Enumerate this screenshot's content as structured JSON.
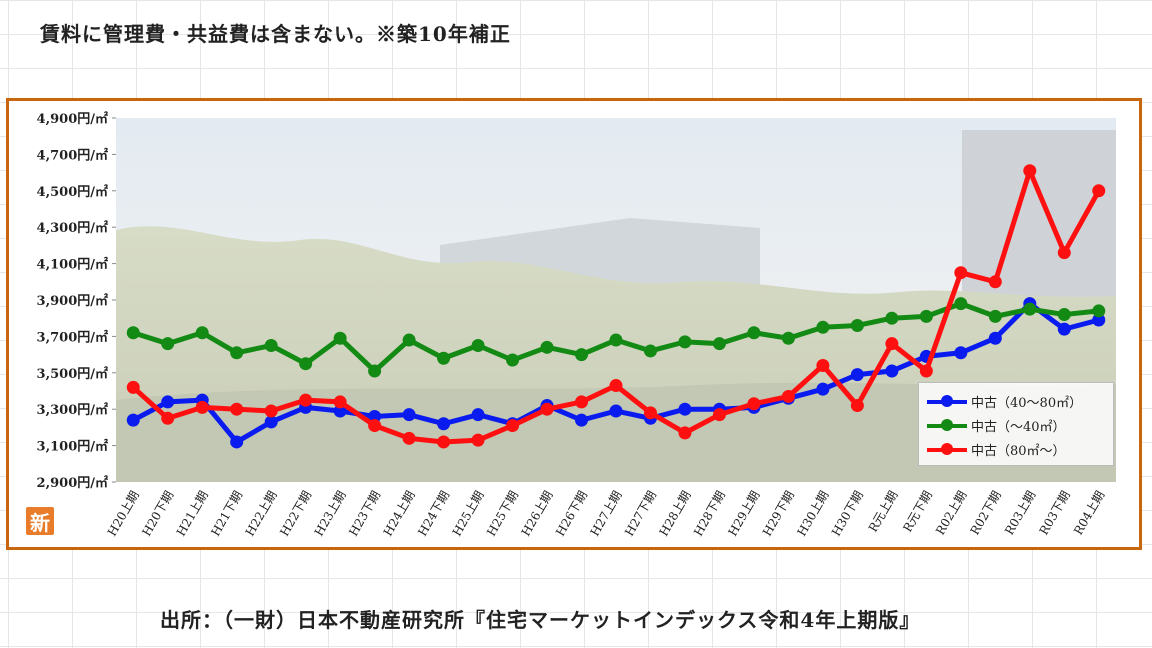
{
  "header": {
    "note": "賃料に管理費・共益費は含まない。※築10年補正"
  },
  "footer": {
    "source": "出所：（一財）日本不動産研究所『住宅マーケットインデックス令和4年上期版』"
  },
  "badge": {
    "label": "新"
  },
  "chart_data": {
    "type": "line",
    "title": "",
    "xlabel": "",
    "ylabel": "",
    "ylim": [
      2900,
      4900
    ],
    "y_ticks": [
      2900,
      3100,
      3300,
      3500,
      3700,
      3900,
      4100,
      4300,
      4500,
      4700,
      4900
    ],
    "y_tick_labels": [
      "2,900円/㎡",
      "3,100円/㎡",
      "3,300円/㎡",
      "3,500円/㎡",
      "3,700円/㎡",
      "3,900円/㎡",
      "4,100円/㎡",
      "4,300円/㎡",
      "4,500円/㎡",
      "4,700円/㎡",
      "4,900円/㎡"
    ],
    "grid": false,
    "legend_position": "bottom-right",
    "categories": [
      "H20上期",
      "H20下期",
      "H21上期",
      "H21下期",
      "H22上期",
      "H22下期",
      "H23上期",
      "H23下期",
      "H24上期",
      "H24下期",
      "H25上期",
      "H25下期",
      "H26上期",
      "H26下期",
      "H27上期",
      "H27下期",
      "H28上期",
      "H28下期",
      "H29上期",
      "H29下期",
      "H30上期",
      "H30下期",
      "R元上期",
      "R元下期",
      "R02上期",
      "R02下期",
      "R03上期",
      "R03下期",
      "R04上期"
    ],
    "series": [
      {
        "name": "中古（40～80㎡）",
        "color": "#0a1bf0",
        "values": [
          3240,
          3340,
          3350,
          3120,
          3230,
          3310,
          3290,
          3260,
          3270,
          3220,
          3270,
          3220,
          3320,
          3240,
          3290,
          3250,
          3300,
          3300,
          3310,
          3360,
          3410,
          3490,
          3510,
          3590,
          3610,
          3690,
          3880,
          3740,
          3790
        ]
      },
      {
        "name": "中古（～40㎡）",
        "color": "#138a13",
        "values": [
          3720,
          3660,
          3720,
          3610,
          3650,
          3550,
          3690,
          3510,
          3680,
          3580,
          3650,
          3570,
          3640,
          3600,
          3680,
          3620,
          3670,
          3660,
          3720,
          3690,
          3750,
          3760,
          3800,
          3810,
          3880,
          3810,
          3850,
          3820,
          3840
        ]
      },
      {
        "name": "中古（80㎡～）",
        "color": "#ff1010",
        "values": [
          3420,
          3250,
          3310,
          3300,
          3290,
          3350,
          3340,
          3210,
          3140,
          3120,
          3130,
          3210,
          3300,
          3340,
          3430,
          3280,
          3170,
          3270,
          3330,
          3370,
          3540,
          3320,
          3660,
          3510,
          4050,
          4000,
          4610,
          4160,
          4500
        ]
      }
    ]
  }
}
